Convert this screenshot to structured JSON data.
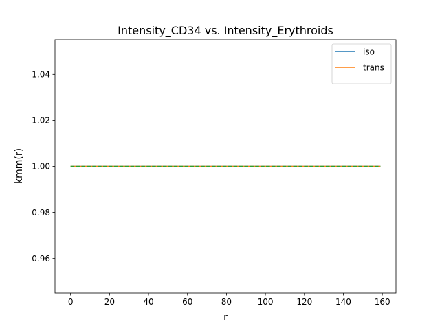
{
  "chart_data": {
    "type": "line",
    "title": "Intensity_CD34 vs. Intensity_Erythroids",
    "xlabel": "r",
    "ylabel": "kmm(r)",
    "xlim": [
      -8,
      167
    ],
    "ylim": [
      0.945,
      1.055
    ],
    "xticks": [
      0,
      20,
      40,
      60,
      80,
      100,
      120,
      140,
      160
    ],
    "yticks": [
      0.96,
      0.98,
      1.0,
      1.02,
      1.04
    ],
    "xtick_labels": [
      "0",
      "20",
      "40",
      "60",
      "80",
      "100",
      "120",
      "140",
      "160"
    ],
    "ytick_labels": [
      "0.96",
      "0.98",
      "1.00",
      "1.02",
      "1.04"
    ],
    "grid": false,
    "legend_position": "top-right",
    "series": [
      {
        "name": "iso",
        "color": "#1f77b4",
        "style": "solid",
        "x": [
          0,
          159
        ],
        "y": [
          1.0,
          1.0
        ]
      },
      {
        "name": "trans",
        "color": "#ff7f0e",
        "style": "solid",
        "x": [
          0,
          159
        ],
        "y": [
          1.0,
          1.0
        ]
      },
      {
        "color": "#2ca02c",
        "style": "dashed",
        "x": [
          0,
          159
        ],
        "y": [
          1.0,
          1.0
        ]
      }
    ]
  }
}
